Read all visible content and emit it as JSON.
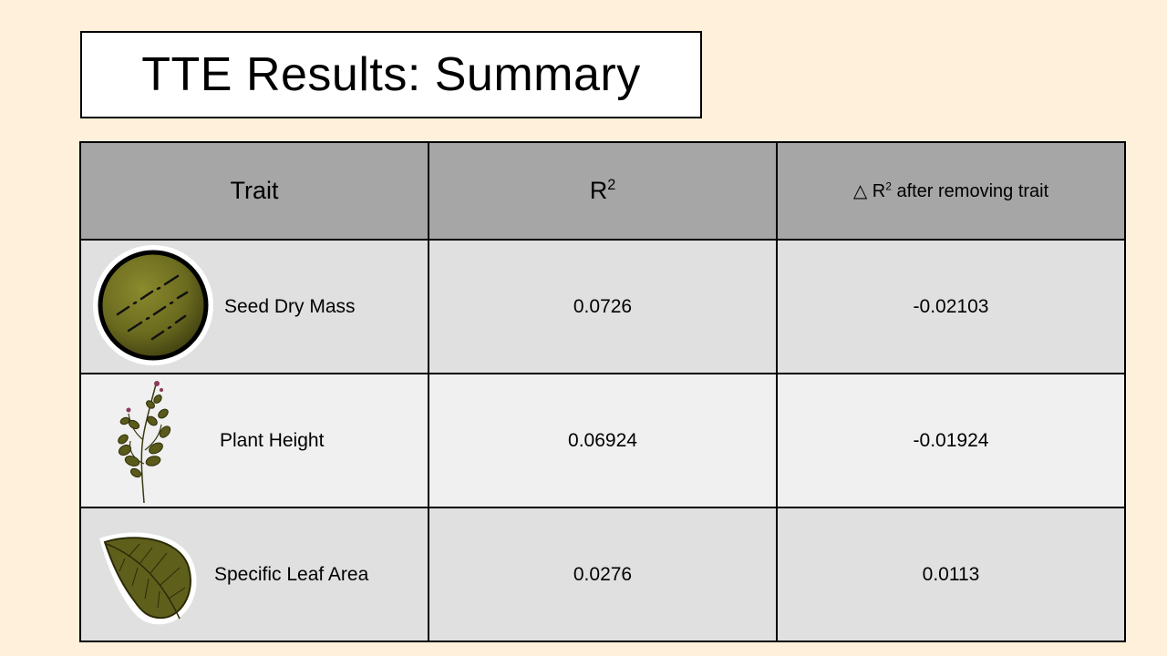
{
  "slide": {
    "title": "TTE Results: Summary"
  },
  "table": {
    "headers": {
      "trait": "Trait",
      "r2_base": "R",
      "r2_sup": "2",
      "delta_symbol": "△",
      "delta_base": " R",
      "delta_sup": "2",
      "delta_suffix": " after removing trait"
    },
    "rows": [
      {
        "trait": "Seed Dry Mass",
        "icon": "seed-icon",
        "r2": "0.0726",
        "delta_r2": "-0.02103"
      },
      {
        "trait": "Plant Height",
        "icon": "plant-icon",
        "r2": "0.06924",
        "delta_r2": "-0.01924"
      },
      {
        "trait": "Specific Leaf Area",
        "icon": "leaf-icon",
        "r2": "0.0276",
        "delta_r2": "0.0113"
      }
    ]
  },
  "colors": {
    "background": "#fff0db",
    "header_fill": "#a6a6a6",
    "row_dark": "#e0e0e0",
    "row_light": "#f0f0f0",
    "icon_olive": "#6b6b1f"
  }
}
